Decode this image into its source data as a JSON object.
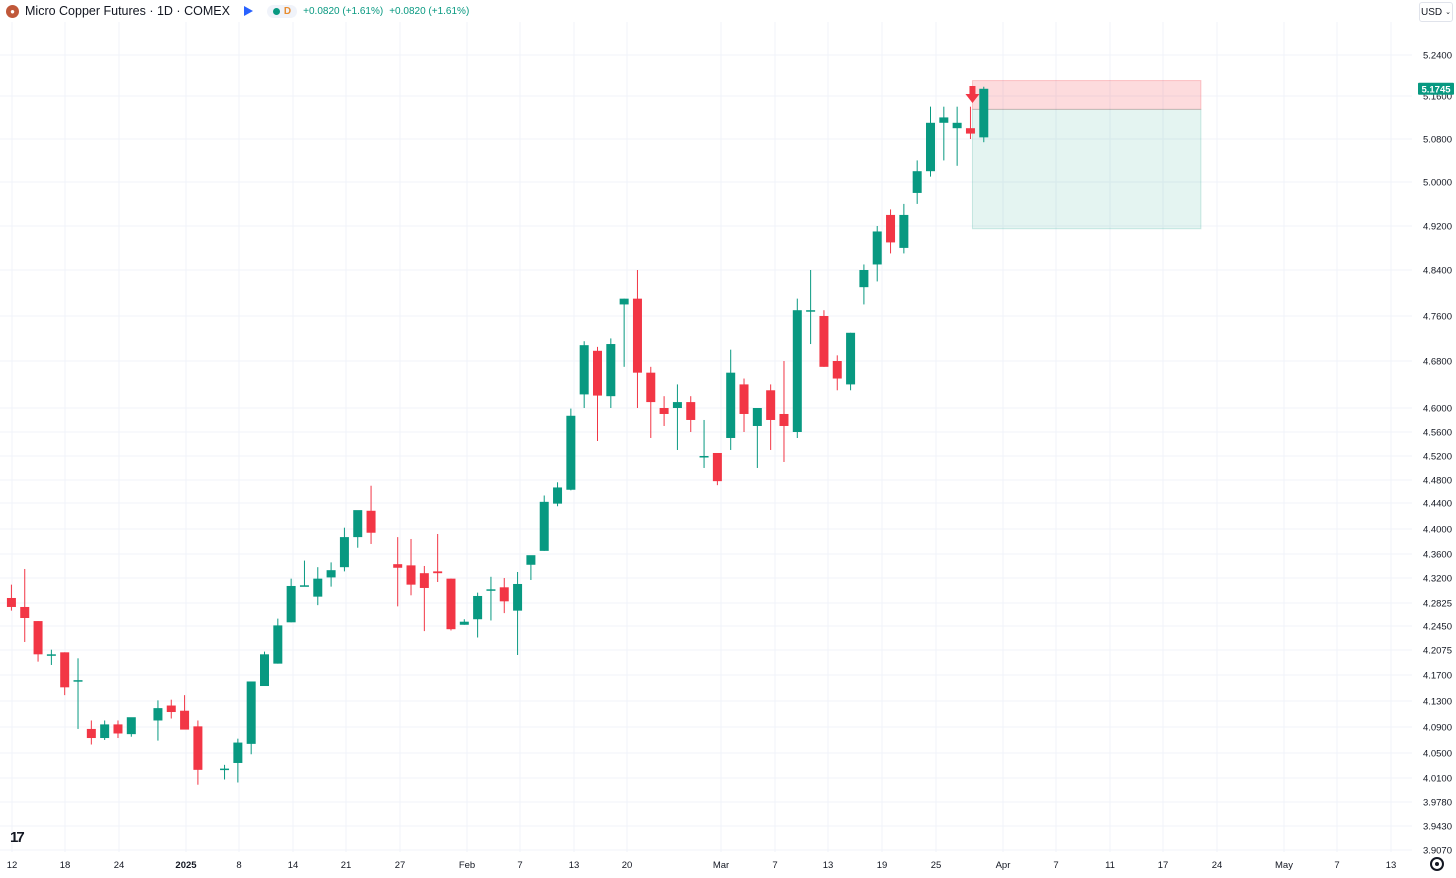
{
  "header": {
    "symbol_icon": "copper-coin-icon",
    "title": "Micro Copper Futures · 1D · COMEX",
    "flag_icon": "blue-flag-icon",
    "status_letter": "D",
    "change_1": "+0.0820 (+1.61%)",
    "change_2": "+0.0820 (+1.61%)"
  },
  "currency": {
    "label": "USD",
    "icon": "chevron-down-icon"
  },
  "colors": {
    "up": "#089981",
    "down": "#f23645",
    "grid": "#f0f3fa",
    "text": "#131722"
  },
  "chart_data": {
    "type": "candlestick",
    "y_ticks": [
      "5.2400",
      "5.1600",
      "5.0800",
      "5.0000",
      "4.9200",
      "4.8400",
      "4.7600",
      "4.6800",
      "4.6000",
      "4.5600",
      "4.5200",
      "4.4800",
      "4.4400",
      "4.4000",
      "4.3600",
      "4.3200",
      "4.2825",
      "4.2450",
      "4.2075",
      "4.1700",
      "4.1300",
      "4.0900",
      "4.0500",
      "4.0100",
      "3.9780",
      "3.9430",
      "3.9070"
    ],
    "x_ticks": [
      "12",
      "18",
      "24",
      "2025",
      "8",
      "14",
      "21",
      "27",
      "Feb",
      "7",
      "13",
      "20",
      "Mar",
      "7",
      "13",
      "19",
      "25",
      "Apr",
      "7",
      "11",
      "17",
      "24",
      "May",
      "7",
      "13"
    ],
    "last_price": "5.1745",
    "candles": [
      {
        "d": "2024-12-11",
        "o": 4.29,
        "h": 4.31,
        "l": 4.27,
        "c": 4.276
      },
      {
        "d": "2024-12-12",
        "o": 4.276,
        "h": 4.335,
        "l": 4.22,
        "c": 4.258
      },
      {
        "d": "2024-12-13",
        "o": 4.253,
        "h": 4.253,
        "l": 4.19,
        "c": 4.201
      },
      {
        "d": "2024-12-16",
        "o": 4.2,
        "h": 4.208,
        "l": 4.185,
        "c": 4.201
      },
      {
        "d": "2024-12-17",
        "o": 4.204,
        "h": 4.204,
        "l": 4.139,
        "c": 4.151
      },
      {
        "d": "2024-12-18",
        "o": 4.16,
        "h": 4.195,
        "l": 4.087,
        "c": 4.162
      },
      {
        "d": "2024-12-19",
        "o": 4.087,
        "h": 4.1,
        "l": 4.063,
        "c": 4.073
      },
      {
        "d": "2024-12-20",
        "o": 4.073,
        "h": 4.1,
        "l": 4.07,
        "c": 4.094
      },
      {
        "d": "2024-12-23",
        "o": 4.094,
        "h": 4.1,
        "l": 4.073,
        "c": 4.08
      },
      {
        "d": "2024-12-24",
        "o": 4.079,
        "h": 4.1,
        "l": 4.075,
        "c": 4.105
      },
      {
        "d": "2024-12-26",
        "o": 4.1,
        "h": 4.131,
        "l": 4.069,
        "c": 4.119
      },
      {
        "d": "2024-12-27",
        "o": 4.123,
        "h": 4.132,
        "l": 4.103,
        "c": 4.113
      },
      {
        "d": "2024-12-30",
        "o": 4.115,
        "h": 4.139,
        "l": 4.092,
        "c": 4.086
      },
      {
        "d": "2024-12-31",
        "o": 4.091,
        "h": 4.1,
        "l": 4.001,
        "c": 4.023
      },
      {
        "d": "2025-01-02",
        "o": 4.025,
        "h": 4.031,
        "l": 4.008,
        "c": 4.025
      },
      {
        "d": "2025-01-03",
        "o": 4.034,
        "h": 4.072,
        "l": 4.004,
        "c": 4.066
      },
      {
        "d": "2025-01-06",
        "o": 4.064,
        "h": 4.159,
        "l": 4.048,
        "c": 4.16
      },
      {
        "d": "2025-01-07",
        "o": 4.153,
        "h": 4.205,
        "l": 4.153,
        "c": 4.201
      },
      {
        "d": "2025-01-08",
        "o": 4.187,
        "h": 4.257,
        "l": 4.187,
        "c": 4.246
      },
      {
        "d": "2025-01-09",
        "o": 4.251,
        "h": 4.319,
        "l": 4.251,
        "c": 4.308
      },
      {
        "d": "2025-01-10",
        "o": 4.308,
        "h": 4.349,
        "l": 4.308,
        "c": 4.309
      },
      {
        "d": "2025-01-13",
        "o": 4.292,
        "h": 4.338,
        "l": 4.279,
        "c": 4.319
      },
      {
        "d": "2025-01-14",
        "o": 4.321,
        "h": 4.346,
        "l": 4.307,
        "c": 4.333
      },
      {
        "d": "2025-01-15",
        "o": 4.338,
        "h": 4.402,
        "l": 4.331,
        "c": 4.387
      },
      {
        "d": "2025-01-16",
        "o": 4.387,
        "h": 4.428,
        "l": 4.37,
        "c": 4.429
      },
      {
        "d": "2025-01-17",
        "o": 4.428,
        "h": 4.47,
        "l": 4.376,
        "c": 4.394
      },
      {
        "d": "2025-01-21",
        "o": 4.343,
        "h": 4.387,
        "l": 4.277,
        "c": 4.337
      },
      {
        "d": "2025-01-22",
        "o": 4.341,
        "h": 4.384,
        "l": 4.294,
        "c": 4.31
      },
      {
        "d": "2025-01-23",
        "o": 4.328,
        "h": 4.34,
        "l": 4.237,
        "c": 4.305
      },
      {
        "d": "2025-01-24",
        "o": 4.331,
        "h": 4.392,
        "l": 4.314,
        "c": 4.328
      },
      {
        "d": "2025-01-27",
        "o": 4.319,
        "h": 4.319,
        "l": 4.238,
        "c": 4.24
      },
      {
        "d": "2025-01-28",
        "o": 4.247,
        "h": 4.256,
        "l": 4.247,
        "c": 4.252
      },
      {
        "d": "2025-01-29",
        "o": 4.256,
        "h": 4.298,
        "l": 4.227,
        "c": 4.293
      },
      {
        "d": "2025-01-30",
        "o": 4.303,
        "h": 4.322,
        "l": 4.254,
        "c": 4.303
      },
      {
        "d": "2025-01-31",
        "o": 4.306,
        "h": 4.32,
        "l": 4.266,
        "c": 4.285
      },
      {
        "d": "2025-02-03",
        "o": 4.27,
        "h": 4.33,
        "l": 4.2,
        "c": 4.311
      },
      {
        "d": "2025-02-04",
        "o": 4.342,
        "h": 4.352,
        "l": 4.317,
        "c": 4.358
      },
      {
        "d": "2025-02-05",
        "o": 4.365,
        "h": 4.453,
        "l": 4.365,
        "c": 4.442
      },
      {
        "d": "2025-02-06",
        "o": 4.439,
        "h": 4.476,
        "l": 4.435,
        "c": 4.467
      },
      {
        "d": "2025-02-07",
        "o": 4.463,
        "h": 4.599,
        "l": 4.462,
        "c": 4.587
      },
      {
        "d": "2025-02-10",
        "o": 4.623,
        "h": 4.715,
        "l": 4.6,
        "c": 4.708
      },
      {
        "d": "2025-02-11",
        "o": 4.698,
        "h": 4.705,
        "l": 4.545,
        "c": 4.621
      },
      {
        "d": "2025-02-12",
        "o": 4.62,
        "h": 4.72,
        "l": 4.6,
        "c": 4.71
      },
      {
        "d": "2025-02-13",
        "o": 4.78,
        "h": 4.79,
        "l": 4.67,
        "c": 4.79
      },
      {
        "d": "2025-02-14",
        "o": 4.79,
        "h": 4.84,
        "l": 4.6,
        "c": 4.66
      },
      {
        "d": "2025-02-17",
        "o": 4.66,
        "h": 4.67,
        "l": 4.55,
        "c": 4.61
      },
      {
        "d": "2025-02-18",
        "o": 4.6,
        "h": 4.62,
        "l": 4.57,
        "c": 4.59
      },
      {
        "d": "2025-02-19",
        "o": 4.6,
        "h": 4.64,
        "l": 4.53,
        "c": 4.61
      },
      {
        "d": "2025-02-20",
        "o": 4.61,
        "h": 4.62,
        "l": 4.56,
        "c": 4.58
      },
      {
        "d": "2025-02-21",
        "o": 4.52,
        "h": 4.58,
        "l": 4.5,
        "c": 4.52
      },
      {
        "d": "2025-02-24",
        "o": 4.525,
        "h": 4.525,
        "l": 4.471,
        "c": 4.478
      },
      {
        "d": "2025-02-25",
        "o": 4.55,
        "h": 4.7,
        "l": 4.53,
        "c": 4.66
      },
      {
        "d": "2025-02-26",
        "o": 4.64,
        "h": 4.65,
        "l": 4.56,
        "c": 4.59
      },
      {
        "d": "2025-02-27",
        "o": 4.57,
        "h": 4.59,
        "l": 4.5,
        "c": 4.6
      },
      {
        "d": "2025-02-28",
        "o": 4.63,
        "h": 4.64,
        "l": 4.53,
        "c": 4.58
      },
      {
        "d": "2025-03-03",
        "o": 4.59,
        "h": 4.68,
        "l": 4.51,
        "c": 4.57
      },
      {
        "d": "2025-03-04",
        "o": 4.56,
        "h": 4.79,
        "l": 4.55,
        "c": 4.77
      },
      {
        "d": "2025-03-05",
        "o": 4.77,
        "h": 4.84,
        "l": 4.71,
        "c": 4.77
      },
      {
        "d": "2025-03-06",
        "o": 4.76,
        "h": 4.77,
        "l": 4.67,
        "c": 4.67
      },
      {
        "d": "2025-03-07",
        "o": 4.68,
        "h": 4.69,
        "l": 4.63,
        "c": 4.65
      },
      {
        "d": "2025-03-10",
        "o": 4.64,
        "h": 4.73,
        "l": 4.63,
        "c": 4.73
      },
      {
        "d": "2025-03-11",
        "o": 4.81,
        "h": 4.85,
        "l": 4.78,
        "c": 4.84
      },
      {
        "d": "2025-03-12",
        "o": 4.85,
        "h": 4.92,
        "l": 4.82,
        "c": 4.91
      },
      {
        "d": "2025-03-13",
        "o": 4.94,
        "h": 4.95,
        "l": 4.87,
        "c": 4.89
      },
      {
        "d": "2025-03-14",
        "o": 4.88,
        "h": 4.96,
        "l": 4.87,
        "c": 4.94
      },
      {
        "d": "2025-03-17",
        "o": 4.98,
        "h": 5.04,
        "l": 4.96,
        "c": 5.02
      },
      {
        "d": "2025-03-18",
        "o": 5.02,
        "h": 5.14,
        "l": 5.01,
        "c": 5.11
      },
      {
        "d": "2025-03-19",
        "o": 5.11,
        "h": 5.14,
        "l": 5.04,
        "c": 5.12
      },
      {
        "d": "2025-03-20",
        "o": 5.1,
        "h": 5.14,
        "l": 5.03,
        "c": 5.11
      },
      {
        "d": "2025-03-21",
        "o": 5.1,
        "h": 5.14,
        "l": 5.08,
        "c": 5.09
      },
      {
        "d": "2025-03-24",
        "o": 5.083,
        "h": 5.178,
        "l": 5.074,
        "c": 5.174
      }
    ],
    "trade_box": {
      "start": "2025-03-21",
      "end": "2025-04-15",
      "entry": 5.135,
      "stop_top": 5.19,
      "target": 4.915
    },
    "signal_marker": {
      "d": "2025-03-21",
      "type": "arrow-down"
    }
  }
}
